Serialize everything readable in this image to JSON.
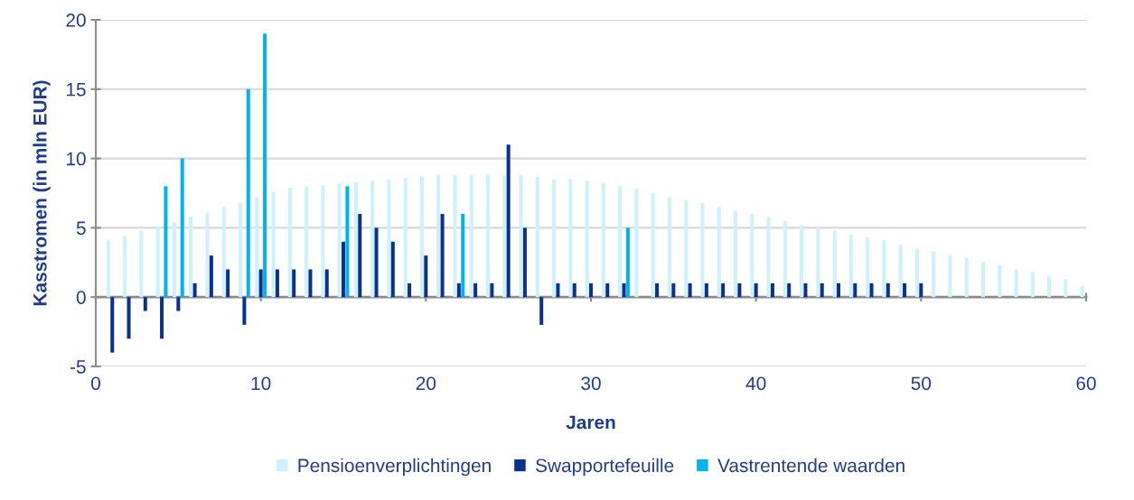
{
  "chart_data": {
    "type": "bar",
    "xlabel": "Jaren",
    "ylabel": "Kasstromen (in mln EUR)",
    "x": [
      1,
      2,
      3,
      4,
      5,
      6,
      7,
      8,
      9,
      10,
      11,
      12,
      13,
      14,
      15,
      16,
      17,
      18,
      19,
      20,
      21,
      22,
      23,
      24,
      25,
      26,
      27,
      28,
      29,
      30,
      31,
      32,
      33,
      34,
      35,
      36,
      37,
      38,
      39,
      40,
      41,
      42,
      43,
      44,
      45,
      46,
      47,
      48,
      49,
      50,
      51,
      52,
      53,
      54,
      55,
      56,
      57,
      58,
      59,
      60
    ],
    "series": [
      {
        "name": "Pensioenverplichtingen",
        "color": "#cdf1fd",
        "values": [
          4.1,
          4.4,
          4.8,
          5.0,
          5.4,
          5.8,
          6.1,
          6.5,
          6.8,
          7.2,
          7.6,
          7.9,
          8.0,
          8.1,
          8.2,
          8.3,
          8.4,
          8.5,
          8.6,
          8.7,
          8.8,
          8.8,
          8.8,
          8.8,
          8.8,
          8.8,
          8.7,
          8.5,
          8.5,
          8.4,
          8.2,
          8.0,
          7.8,
          7.5,
          7.2,
          7.0,
          6.8,
          6.5,
          6.2,
          6.0,
          5.8,
          5.5,
          5.2,
          5.0,
          4.8,
          4.5,
          4.3,
          4.1,
          3.8,
          3.5,
          3.3,
          3.0,
          2.8,
          2.5,
          2.3,
          2.0,
          1.8,
          1.5,
          1.3,
          0.8
        ]
      },
      {
        "name": "Swapportefeuille",
        "color": "#0b318f",
        "values": [
          -4,
          -3,
          -1,
          -3,
          -1,
          1,
          3,
          2,
          -2,
          2,
          2,
          2,
          2,
          2,
          4,
          6,
          5,
          4,
          1,
          3,
          6,
          1,
          1,
          1,
          11,
          5,
          -2,
          1,
          1,
          1,
          1,
          1,
          null,
          1,
          1,
          1,
          1,
          1,
          1,
          1,
          1,
          1,
          1,
          1,
          1,
          1,
          1,
          1,
          1,
          1,
          null,
          null,
          null,
          null,
          null,
          null,
          null,
          null,
          null,
          null
        ]
      },
      {
        "name": "Vastrentende waarden",
        "color": "#00b5ef",
        "values": [
          null,
          null,
          null,
          8,
          10,
          null,
          null,
          null,
          15,
          19,
          null,
          null,
          null,
          null,
          8,
          null,
          null,
          null,
          null,
          null,
          null,
          6,
          null,
          null,
          null,
          null,
          null,
          null,
          null,
          null,
          null,
          5,
          null,
          null,
          null,
          null,
          null,
          null,
          null,
          null,
          null,
          null,
          null,
          null,
          null,
          null,
          null,
          null,
          null,
          null,
          null,
          null,
          null,
          null,
          null,
          null,
          null,
          null,
          null,
          null
        ]
      }
    ],
    "xlim": [
      0,
      60
    ],
    "xticks": [
      0,
      10,
      20,
      30,
      40,
      50,
      60
    ],
    "ylim": [
      -5,
      20
    ],
    "yticks": [
      -5,
      0,
      5,
      10,
      15,
      20
    ],
    "grid": "y",
    "legend": "bottom"
  }
}
